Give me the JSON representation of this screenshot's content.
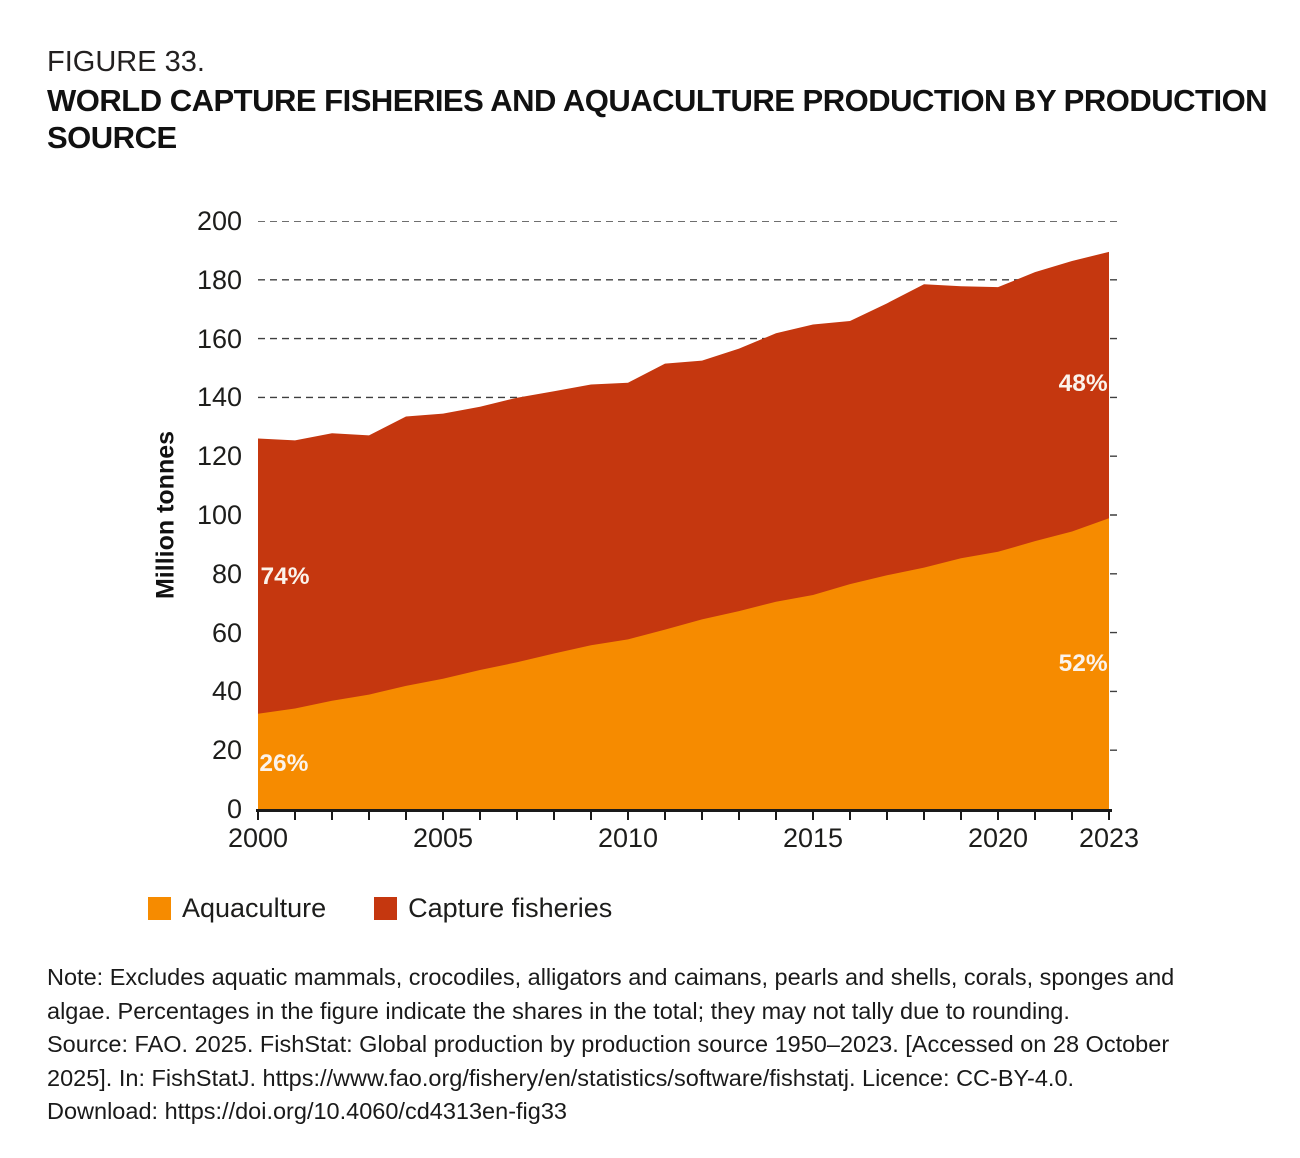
{
  "figure": {
    "label": "FIGURE 33.",
    "title_lines": [
      "WORLD CAPTURE FISHERIES AND AQUACULTURE PRODUCTION BY PRODUCTION",
      "SOURCE"
    ]
  },
  "chart_data": {
    "type": "area",
    "stacked": true,
    "title": "World capture fisheries and aquaculture production by production source",
    "xlabel": "",
    "ylabel": "Million tonnes",
    "xlim": [
      2000,
      2023
    ],
    "ylim": [
      0,
      200
    ],
    "grid": "horizontal dashed",
    "legend_position": "bottom-left",
    "x": [
      2000,
      2001,
      2002,
      2003,
      2004,
      2005,
      2006,
      2007,
      2008,
      2009,
      2010,
      2011,
      2012,
      2013,
      2014,
      2015,
      2016,
      2017,
      2018,
      2019,
      2020,
      2021,
      2022,
      2023
    ],
    "series": [
      {
        "name": "Aquaculture",
        "color": "#F68B00",
        "values": [
          32.4,
          34.2,
          36.8,
          38.9,
          41.9,
          44.3,
          47.3,
          49.9,
          52.9,
          55.7,
          57.7,
          61.0,
          64.5,
          67.3,
          70.5,
          72.8,
          76.5,
          79.5,
          82.1,
          85.3,
          87.5,
          91.1,
          94.4,
          98.9
        ]
      },
      {
        "name": "Capture fisheries",
        "color": "#C5370F",
        "values": [
          93.6,
          91.2,
          91.0,
          88.2,
          91.6,
          90.2,
          89.5,
          90.0,
          89.2,
          88.7,
          87.3,
          90.5,
          88.0,
          89.3,
          91.3,
          92.0,
          89.5,
          92.5,
          96.4,
          92.5,
          90.0,
          91.5,
          92.0,
          90.6
        ]
      }
    ],
    "yticks": [
      0,
      20,
      40,
      60,
      80,
      100,
      120,
      140,
      160,
      180,
      200
    ],
    "xtick_labels": [
      2000,
      2005,
      2010,
      2015,
      2020,
      2023
    ],
    "annotations": [
      {
        "text": "74%",
        "x": 2000.73,
        "y": 79.0,
        "series": "Capture fisheries",
        "color": "#FBF3EB"
      },
      {
        "text": "26%",
        "x": 2000.7,
        "y": 15.3,
        "series": "Aquaculture",
        "color": "#FBF3EB"
      },
      {
        "text": "48%",
        "x": 2022.3,
        "y": 144.6,
        "series": "Capture fisheries",
        "color": "#FBF3EB"
      },
      {
        "text": "52%",
        "x": 2022.3,
        "y": 49.3,
        "series": "Aquaculture",
        "color": "#FBF3EB"
      }
    ]
  },
  "legend": {
    "items": [
      {
        "label": "Aquaculture",
        "color": "#F68B00"
      },
      {
        "label": "Capture fisheries",
        "color": "#C5370F"
      }
    ]
  },
  "footnote": {
    "lines": [
      "Note: Excludes aquatic mammals, crocodiles, alligators and caimans, pearls and shells, corals, sponges and",
      "algae. Percentages in the figure indicate the shares in the total; they may not tally due to rounding.",
      "Source: FAO. 2025. FishStat: Global production by production source 1950–2023. [Accessed on 28 October",
      "2025]. In: FishStatJ. https://www.fao.org/fishery/en/statistics/software/fishstatj. Licence: CC-BY-4.0.",
      "Download: https://doi.org/10.4060/cd4313en-fig33"
    ]
  }
}
